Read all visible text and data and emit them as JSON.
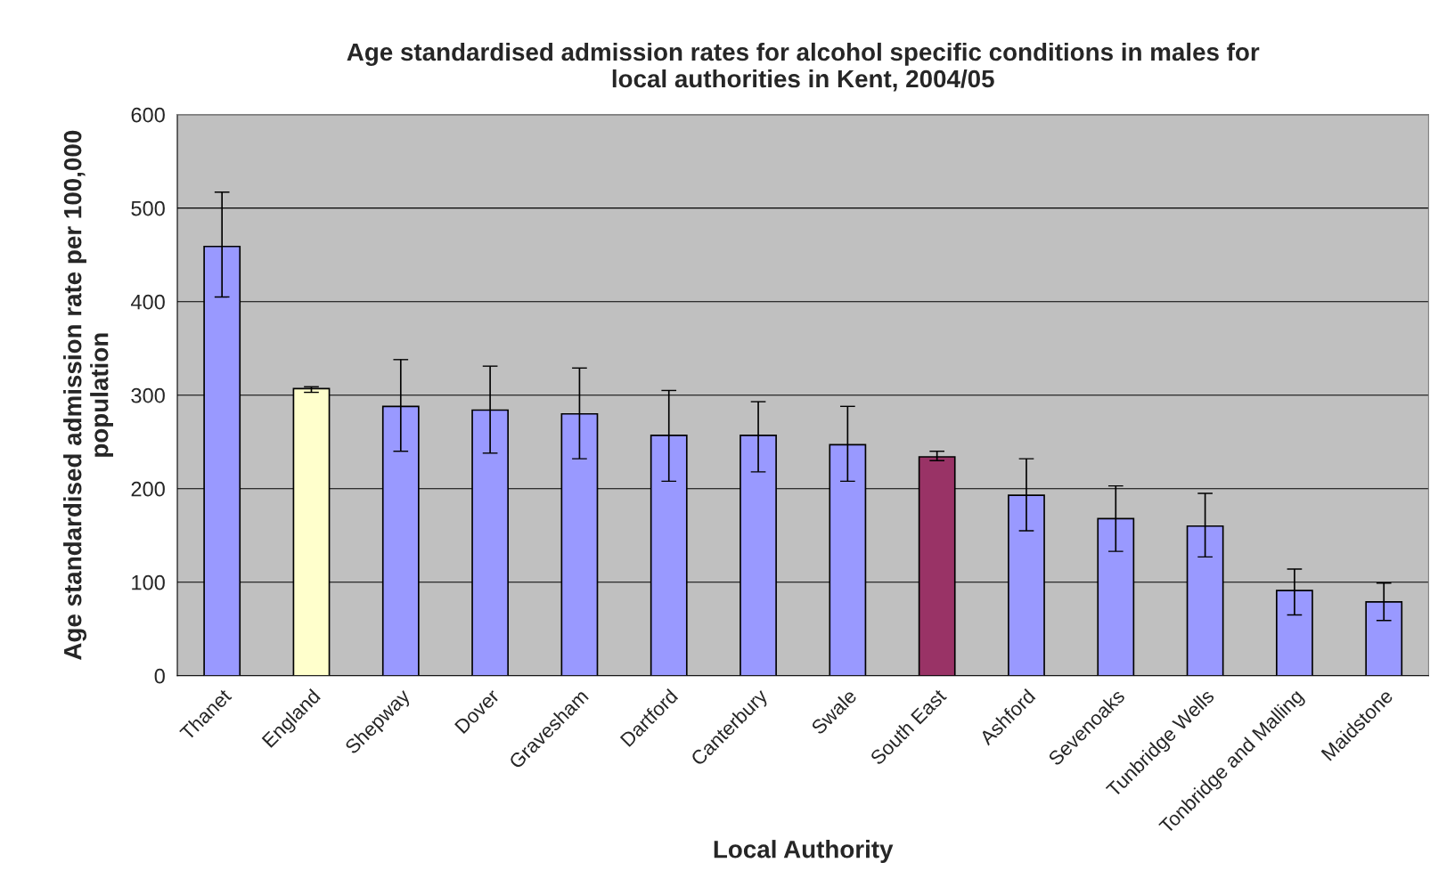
{
  "chart_data": {
    "type": "bar",
    "title": "Age standardised admission rates for alcohol specific conditions in males for\nlocal authorities in Kent, 2004/05",
    "xlabel": "Local Authority",
    "ylabel": "Age standardised admission rate per 100,000\npopulation",
    "categories": [
      "Thanet",
      "England",
      "Shepway",
      "Dover",
      "Gravesham",
      "Dartford",
      "Canterbury",
      "Swale",
      "South East",
      "Ashford",
      "Sevenoaks",
      "Tunbridge Wells",
      "Tonbridge and Malling",
      "Maidstone"
    ],
    "values": [
      459,
      307,
      288,
      284,
      280,
      257,
      257,
      247,
      234,
      193,
      168,
      160,
      91,
      79
    ],
    "errors": [
      [
        405,
        517
      ],
      [
        303,
        309
      ],
      [
        240,
        338
      ],
      [
        238,
        331
      ],
      [
        232,
        329
      ],
      [
        208,
        305
      ],
      [
        218,
        293
      ],
      [
        208,
        288
      ],
      [
        230,
        240
      ],
      [
        155,
        232
      ],
      [
        133,
        203
      ],
      [
        127,
        195
      ],
      [
        65,
        114
      ],
      [
        59,
        99
      ]
    ],
    "colors": [
      "#9999ff",
      "#ffffcc",
      "#9999ff",
      "#9999ff",
      "#9999ff",
      "#9999ff",
      "#9999ff",
      "#9999ff",
      "#993366",
      "#9999ff",
      "#9999ff",
      "#9999ff",
      "#9999ff",
      "#9999ff"
    ],
    "ylim": [
      0,
      600
    ],
    "yticks": [
      0,
      100,
      200,
      300,
      400,
      500,
      600
    ],
    "grid": "y",
    "legend": false
  }
}
